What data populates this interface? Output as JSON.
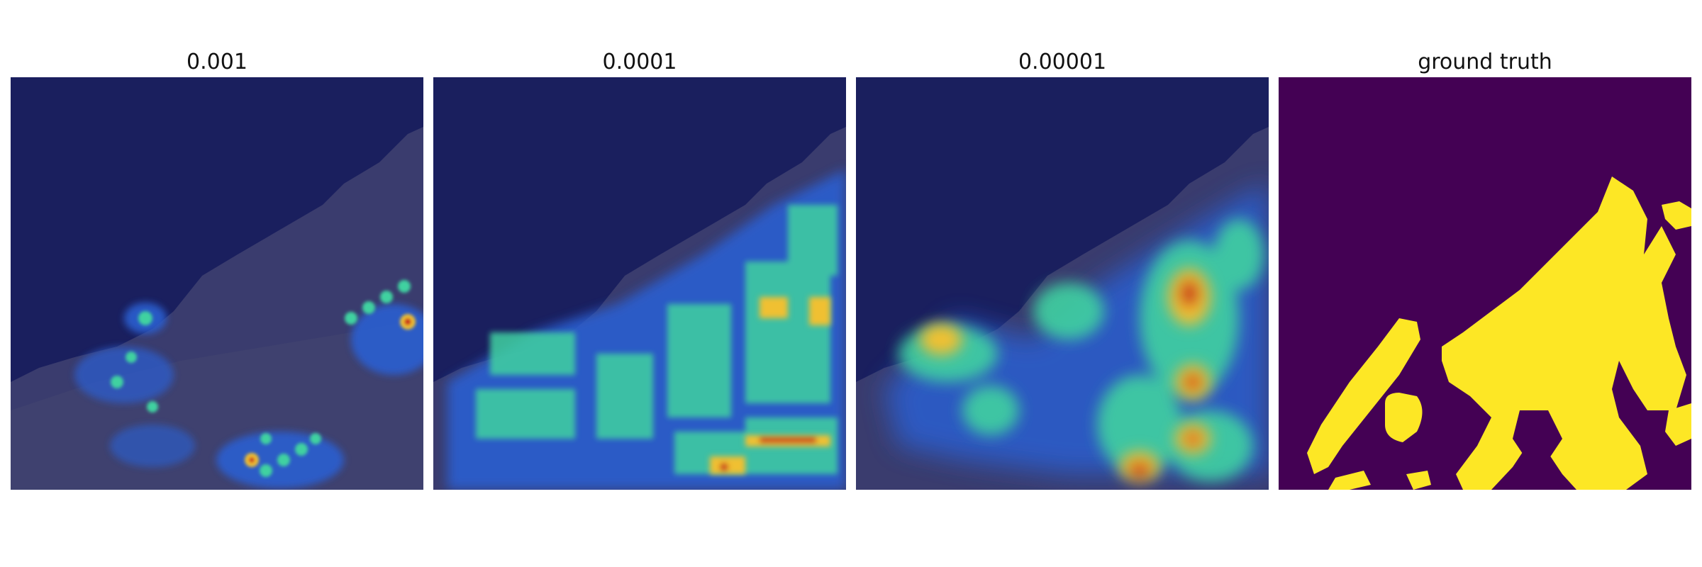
{
  "figure": {
    "panels": [
      {
        "title": "0.001",
        "kind": "heatmap-overlay"
      },
      {
        "title": "0.0001",
        "kind": "heatmap-overlay"
      },
      {
        "title": "0.00001",
        "kind": "heatmap-overlay"
      },
      {
        "title": "ground truth",
        "kind": "mask"
      }
    ],
    "colors": {
      "sea": "#1a1f5e",
      "land": "#3a3c6e",
      "mask_background": "#440154",
      "mask_foreground": "#fde725",
      "heat_low": "#2b5fd0",
      "heat_mid": "#3fd1a0",
      "heat_high": "#f0c030",
      "heat_peak": "#c8261e"
    }
  }
}
